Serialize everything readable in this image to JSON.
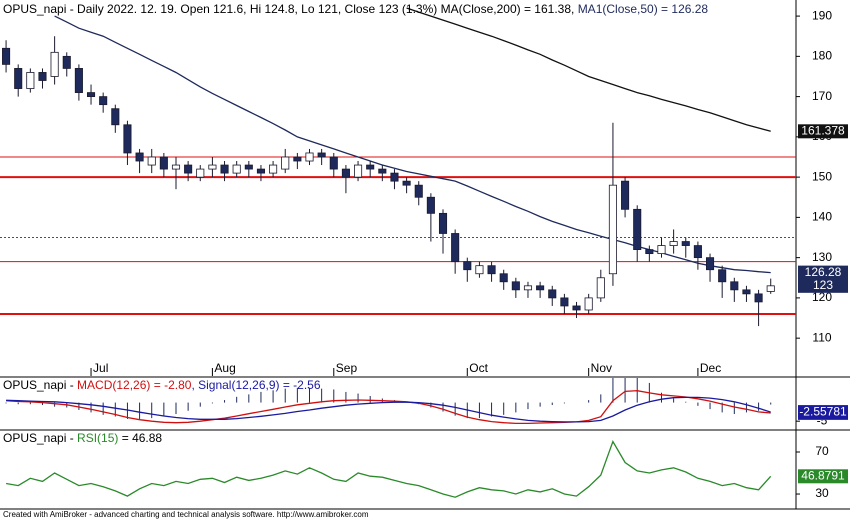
{
  "chart_data": [
    {
      "type": "candlestick",
      "title_parts": [
        "OPUS_napi - Daily 2022. 12. 19. Open 121.6, Hi 124.8, Lo 121, Close 123 (1.3%) MA(Close,200) = 161.38, ",
        "MA1(Close,50) = 126.28"
      ],
      "title_colors": [
        "#000000",
        "#1f2a5c"
      ],
      "categories": [
        null,
        null,
        null,
        null,
        null,
        null,
        null,
        "Jul",
        null,
        null,
        null,
        null,
        null,
        null,
        null,
        null,
        null,
        "Aug",
        null,
        null,
        null,
        null,
        null,
        null,
        null,
        null,
        null,
        "Sep",
        null,
        null,
        null,
        null,
        null,
        null,
        null,
        null,
        null,
        null,
        "Oct",
        null,
        null,
        null,
        null,
        null,
        null,
        null,
        null,
        null,
        "Nov",
        null,
        null,
        null,
        null,
        null,
        null,
        null,
        null,
        "Dec",
        null,
        null,
        null,
        null,
        null,
        null
      ],
      "open": [
        182,
        177,
        172,
        176,
        175,
        180,
        177,
        171,
        170,
        167,
        163,
        156,
        153,
        155,
        152,
        153,
        150,
        152,
        153,
        151,
        153,
        152,
        151,
        152,
        155,
        154,
        156,
        155,
        152,
        150,
        153,
        152,
        151,
        149,
        148,
        145,
        141,
        136,
        129,
        126,
        128,
        126,
        124,
        122,
        123,
        122,
        120,
        118,
        117,
        120,
        126,
        149,
        142,
        132,
        131,
        133,
        134,
        133,
        130,
        127,
        124,
        122,
        121,
        121.6
      ],
      "high": [
        184,
        178,
        177,
        177,
        185,
        181,
        178,
        173,
        171,
        168,
        164,
        157,
        157,
        156,
        155,
        154,
        153,
        155,
        154,
        154,
        154,
        153,
        154,
        157,
        156,
        157,
        157,
        156,
        153,
        154,
        154,
        153,
        152,
        150,
        149,
        146,
        142,
        137,
        130,
        129,
        129,
        127,
        125,
        124,
        124,
        123,
        121,
        119,
        121,
        127,
        163.5,
        150,
        143,
        133,
        135,
        137,
        135,
        134,
        131,
        128,
        125,
        123,
        122,
        124.8
      ],
      "low": [
        176,
        170,
        171,
        172,
        173,
        175,
        169,
        168,
        166,
        161,
        153,
        151,
        151,
        150,
        147,
        149,
        149,
        150,
        149,
        150,
        150,
        149,
        150,
        151,
        152,
        153,
        153,
        150,
        146,
        149,
        150,
        149,
        147,
        146,
        143,
        134,
        131,
        126,
        124,
        125,
        124,
        122,
        120,
        120,
        120,
        118,
        116,
        115,
        116,
        119,
        123,
        140,
        129,
        129,
        130,
        131,
        130,
        127,
        124,
        120,
        119,
        119,
        113,
        121
      ],
      "close": [
        178,
        172,
        176,
        174,
        181,
        177,
        171,
        170,
        168,
        163,
        156,
        154,
        155,
        152,
        153,
        151,
        152,
        153,
        151,
        153,
        152,
        151,
        153,
        155,
        154,
        156,
        155,
        152,
        150,
        153,
        152,
        151,
        149,
        148,
        145,
        141,
        136,
        129,
        127,
        128,
        126,
        124,
        122,
        123,
        122,
        120,
        118,
        117,
        120,
        125,
        148,
        142,
        132,
        131,
        133,
        134,
        133,
        130,
        127,
        124,
        122,
        121,
        119,
        123
      ],
      "close_label": "123",
      "close_label_color": "#1f2a5c",
      "up_color": "#ffffff",
      "down_color": "#1f2a5c",
      "outline_color": "#1a1a2e",
      "lines": [
        {
          "color": "#111111",
          "last_label": "161.378",
          "label_color": "#111111",
          "values": [
            null,
            null,
            null,
            null,
            null,
            null,
            null,
            null,
            null,
            null,
            null,
            null,
            null,
            null,
            null,
            null,
            null,
            null,
            null,
            null,
            null,
            null,
            null,
            null,
            null,
            null,
            null,
            null,
            null,
            null,
            null,
            null,
            null,
            192,
            191,
            190,
            189,
            188,
            187,
            186,
            185,
            183.9,
            182.8,
            181.6,
            180.5,
            179.1,
            177.8,
            176.4,
            175,
            174,
            173,
            172,
            171,
            170.2,
            169.3,
            168.5,
            167.7,
            166.8,
            166,
            165,
            164,
            163,
            162.2,
            161.38
          ]
        },
        {
          "color": "#1f2a5c",
          "last_label": "126.28",
          "label_color": "#1f2a5c",
          "values": [
            null,
            null,
            null,
            null,
            190,
            188.5,
            187,
            186,
            185,
            183.5,
            182,
            180.5,
            179,
            177.5,
            176,
            174.2,
            172.4,
            170.8,
            169.3,
            167.8,
            166.3,
            164.8,
            163.3,
            161.7,
            160,
            159,
            158,
            157,
            156,
            155,
            154,
            153,
            152.2,
            151.4,
            150.8,
            150.2,
            149.6,
            149,
            147.8,
            146.5,
            145.2,
            144,
            142.7,
            141.5,
            140.2,
            139,
            138,
            137,
            136.2,
            135.3,
            134.5,
            133.7,
            132.8,
            132,
            131.2,
            130.3,
            129.5,
            128.6,
            128,
            127.5,
            127,
            126.8,
            126.5,
            126.28
          ]
        }
      ],
      "hlines": [
        {
          "value": 155,
          "style": "solid",
          "width": 1
        },
        {
          "value": 150,
          "style": "solid",
          "width": 2
        },
        {
          "value": 135,
          "style": "dotted",
          "width": 1
        },
        {
          "value": 129,
          "style": "solid",
          "width": 1
        },
        {
          "value": 116,
          "style": "solid",
          "width": 2
        }
      ],
      "hline_color": "#e01010",
      "ylim": [
        100.6,
        193.5
      ],
      "yticks": [
        110,
        120,
        130,
        140,
        150,
        160,
        170,
        180,
        190
      ]
    },
    {
      "type": "line",
      "title_parts": [
        "OPUS_napi - ",
        "MACD(12,26) = -2.80",
        ", Signal(12,26,9) = -2.56"
      ],
      "title_colors": [
        "#000000",
        "#d01010",
        "#1a1aa0"
      ],
      "histogram": true,
      "histogram_color": "#1f2a5c",
      "series": [
        {
          "color": "#d01010",
          "last_label": "-2.80206",
          "values": [
            0.5,
            0.3,
            0.2,
            0,
            -0.3,
            -0.6,
            -1.2,
            -1.8,
            -2.5,
            -3.2,
            -4,
            -4.6,
            -5,
            -5.3,
            -5.4,
            -5.3,
            -5,
            -4.6,
            -4.2,
            -3.6,
            -3,
            -2.4,
            -1.8,
            -1.2,
            -0.6,
            -0.2,
            0.2,
            0.5,
            0.6,
            0.7,
            0.6,
            0.5,
            0.4,
            0.2,
            -0.2,
            -0.9,
            -1.8,
            -2.9,
            -3.9,
            -4.6,
            -5.1,
            -5.4,
            -5.6,
            -5.6,
            -5.5,
            -5.4,
            -5.3,
            -5.2,
            -4.8,
            -3.8,
            0.5,
            3,
            3.2,
            2.6,
            2.1,
            1.8,
            1.5,
            1,
            0.4,
            -0.4,
            -1.2,
            -1.8,
            -2.5,
            -2.8
          ]
        },
        {
          "color": "#1a1aa0",
          "last_label": "-2.55781",
          "values": [
            0.6,
            0.5,
            0.4,
            0.3,
            0.2,
            0,
            -0.3,
            -0.6,
            -1,
            -1.5,
            -2,
            -2.6,
            -3.1,
            -3.6,
            -4,
            -4.3,
            -4.5,
            -4.5,
            -4.5,
            -4.3,
            -4,
            -3.7,
            -3.3,
            -2.9,
            -2.4,
            -2,
            -1.5,
            -1.1,
            -0.7,
            -0.4,
            -0.2,
            0,
            0.1,
            0.1,
            0,
            -0.3,
            -0.7,
            -1.3,
            -2,
            -2.7,
            -3.4,
            -3.9,
            -4.4,
            -4.8,
            -5,
            -5.1,
            -5.2,
            -5.2,
            -5.1,
            -4.8,
            -3.6,
            -2,
            -0.7,
            0.2,
            0.9,
            1.3,
            1.4,
            1.4,
            1.2,
            0.8,
            0.2,
            -0.6,
            -1.5,
            -2.56
          ]
        }
      ],
      "ylim": [
        -7.1,
        6.6
      ],
      "yticks": [
        -5
      ]
    },
    {
      "type": "line",
      "title_parts": [
        "OPUS_napi - ",
        "RSI(15)",
        " = 46.88"
      ],
      "title_colors": [
        "#000000",
        "#2a8a2a",
        "#000000"
      ],
      "series": [
        {
          "color": "#2a8a2a",
          "last_label": "46.8791",
          "values": [
            40,
            38,
            45,
            42,
            50,
            44,
            38,
            40,
            37,
            33,
            28,
            35,
            40,
            38,
            42,
            40,
            44,
            45,
            41,
            46,
            43,
            45,
            48,
            52,
            49,
            55,
            50,
            44,
            42,
            50,
            47,
            46,
            43,
            40,
            38,
            34,
            30,
            27,
            32,
            36,
            34,
            33,
            30,
            34,
            32,
            35,
            30,
            28,
            37,
            48,
            80,
            60,
            52,
            50,
            53,
            55,
            51,
            45,
            42,
            38,
            40,
            36,
            34,
            46.88
          ]
        }
      ],
      "ylim": [
        16.7,
        90
      ],
      "yticks": [
        30,
        70
      ]
    }
  ],
  "footer": "Created with AmiBroker - advanced charting and technical analysis software. http://www.amibroker.com"
}
